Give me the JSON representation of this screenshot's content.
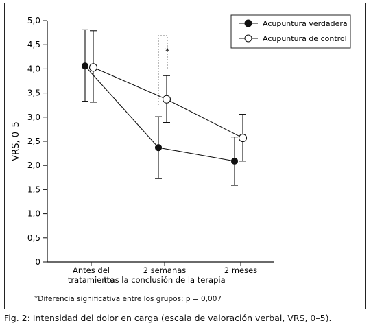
{
  "caption": "Fig. 2: Intensidad del dolor en carga (escala de valoración verbal, VRS, 0–5).",
  "footnote": "*Diferencia significativa entre los grupos: p = 0,007",
  "chart_data": {
    "type": "line",
    "ylabel": "VRS, 0–5",
    "ylim": [
      0,
      5
    ],
    "yticks": [
      "0",
      "0,5",
      "1,0",
      "1,5",
      "2,0",
      "2,5",
      "3,0",
      "3,5",
      "4,0",
      "4,5",
      "5,0"
    ],
    "categories": [
      [
        "Antes del",
        "tratamiento"
      ],
      [
        "2 semanas",
        "tras la conclusión de la terapia"
      ],
      [
        "2 meses",
        ""
      ]
    ],
    "significance_marker": "*",
    "series": [
      {
        "name": "Acupuntura verdadera",
        "marker": "filled",
        "values": [
          4.06,
          2.37,
          2.09
        ],
        "error_low": [
          3.33,
          1.73,
          1.59
        ],
        "error_high": [
          4.81,
          3.01,
          2.59
        ]
      },
      {
        "name": "Acupuntura de control",
        "marker": "open",
        "values": [
          4.03,
          3.37,
          2.57
        ],
        "error_low": [
          3.31,
          2.89,
          2.09
        ],
        "error_high": [
          4.79,
          3.86,
          3.06
        ]
      }
    ],
    "legend_position": "top-right"
  }
}
